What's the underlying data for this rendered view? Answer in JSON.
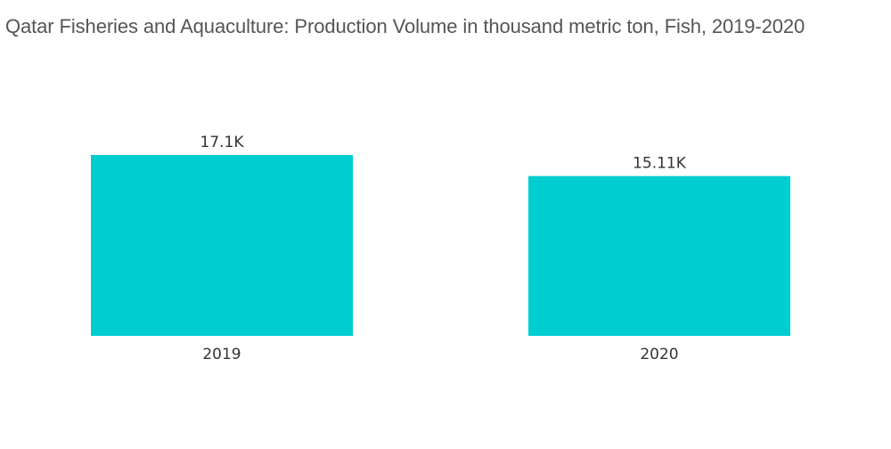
{
  "chart_data": {
    "type": "bar",
    "title": "Qatar Fisheries and Aquaculture: Production Volume in thousand metric ton, Fish, 2019-2020",
    "categories": [
      "2019",
      "2020"
    ],
    "values": [
      17.1,
      15.11
    ],
    "data_labels": [
      "17.1K",
      "15.11K"
    ],
    "xlabel": "",
    "ylabel": "",
    "ylim": [
      0,
      17.1
    ],
    "grid": false,
    "legend": "none",
    "bar_color": "#00CDD0"
  }
}
